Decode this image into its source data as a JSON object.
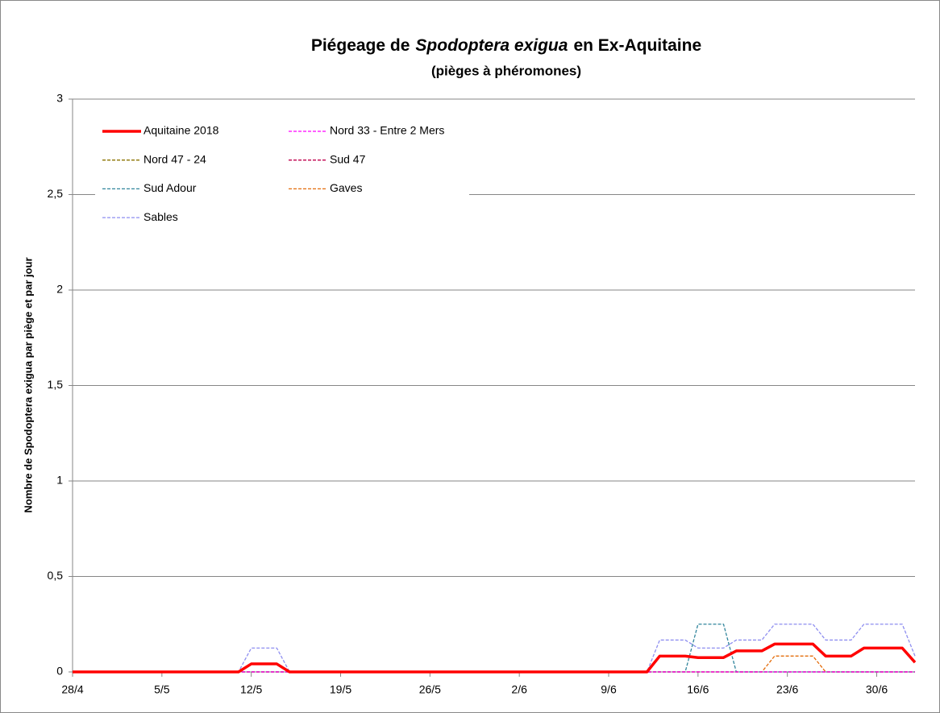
{
  "chart_data": {
    "type": "line",
    "title": [
      "Piégeage de",
      "Spodoptera  exigua",
      "en Ex-Aquitaine"
    ],
    "title_italic": 1,
    "subtitle": "(pièges à phéromones)",
    "y_label": "Nombre de Spodoptera exigua par piège et par jour",
    "categories": [
      "28/4",
      null,
      null,
      null,
      null,
      null,
      null,
      "5/5",
      null,
      null,
      null,
      null,
      null,
      null,
      "12/5",
      null,
      null,
      null,
      null,
      null,
      null,
      "19/5",
      null,
      null,
      null,
      null,
      null,
      null,
      "26/5",
      null,
      null,
      null,
      null,
      null,
      null,
      "2/6",
      null,
      null,
      null,
      null,
      null,
      null,
      "9/6",
      null,
      null,
      null,
      null,
      null,
      null,
      "16/6",
      null,
      null,
      null,
      null,
      null,
      null,
      "23/6",
      null,
      null,
      null,
      null,
      null,
      null,
      "30/6",
      null,
      null,
      null
    ],
    "ylim": [
      0,
      3
    ],
    "yticks": [
      0,
      {
        "value": 0.5,
        "label": "0,5"
      },
      1,
      {
        "value": 1.5,
        "label": "1,5"
      },
      2,
      {
        "value": 2.5,
        "label": "2,5"
      },
      3
    ],
    "grid": true,
    "legend": "top-left",
    "series": [
      {
        "name": "Aquitaine 2018",
        "color": "#ff0000",
        "dashed": false,
        "values": [
          0,
          0,
          0,
          0,
          0,
          0,
          0,
          0,
          0,
          0,
          0,
          0,
          0,
          0,
          0.042,
          0.042,
          0.042,
          0,
          0,
          0,
          0,
          0,
          0,
          0,
          0,
          0,
          0,
          0,
          0,
          0,
          0,
          0,
          0,
          0,
          0,
          0,
          0,
          0,
          0,
          0,
          0,
          0,
          0,
          0,
          0,
          0,
          0.083,
          0.083,
          0.083,
          0.075,
          0.075,
          0.075,
          0.11,
          0.11,
          0.11,
          0.146,
          0.146,
          0.146,
          0.146,
          0.083,
          0.083,
          0.083,
          0.125,
          0.125,
          0.125,
          0.125,
          0.05
        ]
      },
      {
        "name": "Nord 33 - Entre 2 Mers",
        "color": "#ff00ff",
        "dashed": true,
        "values": [
          0,
          0,
          0,
          0,
          0,
          0,
          0,
          0,
          0,
          0,
          0,
          0,
          0,
          0,
          0,
          0,
          0,
          0,
          0,
          0,
          0,
          0,
          0,
          0,
          0,
          0,
          0,
          0,
          0,
          0,
          0,
          0,
          0,
          0,
          0,
          0,
          0,
          0,
          0,
          0,
          0,
          0,
          0,
          0,
          0,
          0,
          0,
          0,
          0,
          0,
          0,
          0,
          0,
          0,
          0,
          0,
          0,
          0,
          0,
          0,
          0,
          0,
          0,
          0,
          0,
          0,
          0
        ]
      },
      {
        "name": "Nord 47 - 24",
        "color": "#8b7300",
        "dashed": true,
        "values": [
          0,
          0,
          0,
          0,
          0,
          0,
          0,
          0,
          0,
          0,
          0,
          0,
          0,
          0,
          0,
          0,
          0,
          0,
          0,
          0,
          0,
          0,
          0,
          0,
          0,
          0,
          0,
          0,
          0,
          0,
          0,
          0,
          0,
          0,
          0,
          0,
          0,
          0,
          0,
          0,
          0,
          0,
          0,
          0,
          0,
          0,
          0,
          0,
          0,
          0,
          0,
          0,
          0,
          0,
          0,
          0,
          0,
          0,
          0,
          0,
          0,
          0,
          0,
          0,
          0,
          0,
          0
        ]
      },
      {
        "name": "Sud 47",
        "color": "#c0004c",
        "dashed": true,
        "values": [
          0,
          0,
          0,
          0,
          0,
          0,
          0,
          0,
          0,
          0,
          0,
          0,
          0,
          0,
          0,
          0,
          0,
          0,
          0,
          0,
          0,
          0,
          0,
          0,
          0,
          0,
          0,
          0,
          0,
          0,
          0,
          0,
          0,
          0,
          0,
          0,
          0,
          0,
          0,
          0,
          0,
          0,
          0,
          0,
          0,
          0,
          0,
          0,
          0,
          0,
          0,
          0,
          0,
          0,
          0,
          0,
          0,
          0,
          0,
          0,
          0,
          0,
          0,
          0,
          0,
          0,
          0
        ]
      },
      {
        "name": "Sud Adour",
        "color": "#31859c",
        "dashed": true,
        "values": [
          0,
          0,
          0,
          0,
          0,
          0,
          0,
          0,
          0,
          0,
          0,
          0,
          0,
          0,
          0,
          0,
          0,
          0,
          0,
          0,
          0,
          0,
          0,
          0,
          0,
          0,
          0,
          0,
          0,
          0,
          0,
          0,
          0,
          0,
          0,
          0,
          0,
          0,
          0,
          0,
          0,
          0,
          0,
          0,
          0,
          0,
          0,
          0,
          0,
          0.25,
          0.25,
          0.25,
          0,
          0,
          0,
          0,
          0,
          0,
          0,
          0,
          0,
          0,
          0,
          0,
          0,
          0,
          0
        ]
      },
      {
        "name": "Gaves",
        "color": "#e46c0a",
        "dashed": true,
        "values": [
          0,
          0,
          0,
          0,
          0,
          0,
          0,
          0,
          0,
          0,
          0,
          0,
          0,
          0,
          0,
          0,
          0,
          0,
          0,
          0,
          0,
          0,
          0,
          0,
          0,
          0,
          0,
          0,
          0,
          0,
          0,
          0,
          0,
          0,
          0,
          0,
          0,
          0,
          0,
          0,
          0,
          0,
          0,
          0,
          0,
          0,
          0,
          0,
          0,
          0,
          0,
          0,
          0,
          0,
          0,
          0.083,
          0.083,
          0.083,
          0.083,
          0,
          0,
          0,
          0,
          0,
          0,
          0,
          0
        ]
      },
      {
        "name": "Sables",
        "color": "#8e8ef0",
        "dashed": true,
        "values": [
          0,
          0,
          0,
          0,
          0,
          0,
          0,
          0,
          0,
          0,
          0,
          0,
          0,
          0,
          0.125,
          0.125,
          0.125,
          0,
          0,
          0,
          0,
          0,
          0,
          0,
          0,
          0,
          0,
          0,
          0,
          0,
          0,
          0,
          0,
          0,
          0,
          0,
          0,
          0,
          0,
          0,
          0,
          0,
          0,
          0,
          0,
          0,
          0.167,
          0.167,
          0.167,
          0.125,
          0.125,
          0.125,
          0.167,
          0.167,
          0.167,
          0.25,
          0.25,
          0.25,
          0.25,
          0.167,
          0.167,
          0.167,
          0.25,
          0.25,
          0.25,
          0.25,
          0.083
        ]
      }
    ]
  }
}
